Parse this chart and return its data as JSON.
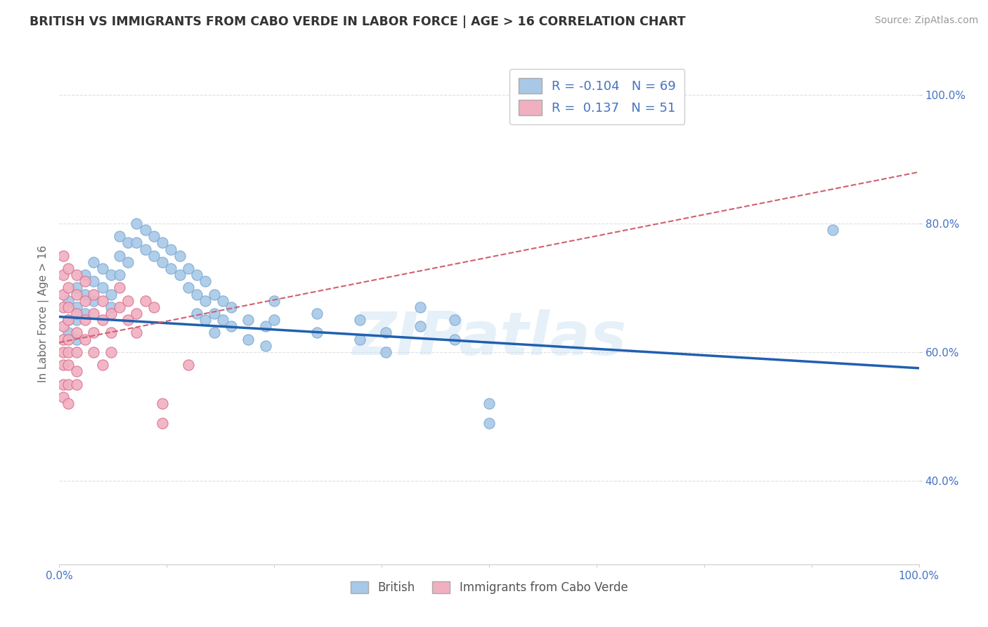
{
  "title": "BRITISH VS IMMIGRANTS FROM CABO VERDE IN LABOR FORCE | AGE > 16 CORRELATION CHART",
  "source": "Source: ZipAtlas.com",
  "ylabel": "In Labor Force | Age > 16",
  "xlim": [
    0.0,
    1.0
  ],
  "ylim": [
    0.27,
    1.05
  ],
  "ytick_positions": [
    0.4,
    0.6,
    0.8,
    1.0
  ],
  "ytick_labels": [
    "40.0%",
    "60.0%",
    "80.0%",
    "100.0%"
  ],
  "grid_color": "#e0e0e0",
  "background_color": "#ffffff",
  "watermark": "ZIPatlas",
  "british_color": "#a8c8e8",
  "cabo_verde_color": "#f0b0c0",
  "british_edge": "#7aaad0",
  "cabo_verde_edge": "#d87090",
  "trend_british_color": "#2060b0",
  "trend_cabo_color": "#d06070",
  "british_R": -0.104,
  "british_N": 69,
  "cabo_R": 0.137,
  "cabo_N": 51,
  "british_points": [
    [
      0.01,
      0.68
    ],
    [
      0.01,
      0.65
    ],
    [
      0.01,
      0.63
    ],
    [
      0.02,
      0.7
    ],
    [
      0.02,
      0.67
    ],
    [
      0.02,
      0.65
    ],
    [
      0.02,
      0.62
    ],
    [
      0.03,
      0.72
    ],
    [
      0.03,
      0.69
    ],
    [
      0.03,
      0.66
    ],
    [
      0.04,
      0.74
    ],
    [
      0.04,
      0.71
    ],
    [
      0.04,
      0.68
    ],
    [
      0.05,
      0.73
    ],
    [
      0.05,
      0.7
    ],
    [
      0.06,
      0.72
    ],
    [
      0.06,
      0.69
    ],
    [
      0.06,
      0.67
    ],
    [
      0.07,
      0.78
    ],
    [
      0.07,
      0.75
    ],
    [
      0.07,
      0.72
    ],
    [
      0.08,
      0.77
    ],
    [
      0.08,
      0.74
    ],
    [
      0.09,
      0.8
    ],
    [
      0.09,
      0.77
    ],
    [
      0.1,
      0.79
    ],
    [
      0.1,
      0.76
    ],
    [
      0.11,
      0.78
    ],
    [
      0.11,
      0.75
    ],
    [
      0.12,
      0.77
    ],
    [
      0.12,
      0.74
    ],
    [
      0.13,
      0.76
    ],
    [
      0.13,
      0.73
    ],
    [
      0.14,
      0.75
    ],
    [
      0.14,
      0.72
    ],
    [
      0.15,
      0.73
    ],
    [
      0.15,
      0.7
    ],
    [
      0.16,
      0.72
    ],
    [
      0.16,
      0.69
    ],
    [
      0.16,
      0.66
    ],
    [
      0.17,
      0.71
    ],
    [
      0.17,
      0.68
    ],
    [
      0.17,
      0.65
    ],
    [
      0.18,
      0.69
    ],
    [
      0.18,
      0.66
    ],
    [
      0.18,
      0.63
    ],
    [
      0.19,
      0.68
    ],
    [
      0.19,
      0.65
    ],
    [
      0.2,
      0.67
    ],
    [
      0.2,
      0.64
    ],
    [
      0.22,
      0.65
    ],
    [
      0.22,
      0.62
    ],
    [
      0.24,
      0.64
    ],
    [
      0.24,
      0.61
    ],
    [
      0.25,
      0.68
    ],
    [
      0.25,
      0.65
    ],
    [
      0.3,
      0.66
    ],
    [
      0.3,
      0.63
    ],
    [
      0.35,
      0.65
    ],
    [
      0.35,
      0.62
    ],
    [
      0.38,
      0.63
    ],
    [
      0.38,
      0.6
    ],
    [
      0.42,
      0.67
    ],
    [
      0.42,
      0.64
    ],
    [
      0.46,
      0.65
    ],
    [
      0.46,
      0.62
    ],
    [
      0.5,
      0.52
    ],
    [
      0.5,
      0.49
    ],
    [
      0.9,
      0.79
    ]
  ],
  "cabo_verde_points": [
    [
      0.005,
      0.75
    ],
    [
      0.005,
      0.72
    ],
    [
      0.005,
      0.69
    ],
    [
      0.005,
      0.67
    ],
    [
      0.005,
      0.64
    ],
    [
      0.005,
      0.62
    ],
    [
      0.005,
      0.6
    ],
    [
      0.005,
      0.58
    ],
    [
      0.005,
      0.55
    ],
    [
      0.005,
      0.53
    ],
    [
      0.01,
      0.73
    ],
    [
      0.01,
      0.7
    ],
    [
      0.01,
      0.67
    ],
    [
      0.01,
      0.65
    ],
    [
      0.01,
      0.62
    ],
    [
      0.01,
      0.6
    ],
    [
      0.01,
      0.58
    ],
    [
      0.01,
      0.55
    ],
    [
      0.01,
      0.52
    ],
    [
      0.02,
      0.72
    ],
    [
      0.02,
      0.69
    ],
    [
      0.02,
      0.66
    ],
    [
      0.02,
      0.63
    ],
    [
      0.02,
      0.6
    ],
    [
      0.02,
      0.57
    ],
    [
      0.02,
      0.55
    ],
    [
      0.03,
      0.71
    ],
    [
      0.03,
      0.68
    ],
    [
      0.03,
      0.65
    ],
    [
      0.03,
      0.62
    ],
    [
      0.04,
      0.69
    ],
    [
      0.04,
      0.66
    ],
    [
      0.04,
      0.63
    ],
    [
      0.04,
      0.6
    ],
    [
      0.05,
      0.68
    ],
    [
      0.05,
      0.65
    ],
    [
      0.05,
      0.58
    ],
    [
      0.06,
      0.66
    ],
    [
      0.06,
      0.63
    ],
    [
      0.06,
      0.6
    ],
    [
      0.07,
      0.7
    ],
    [
      0.07,
      0.67
    ],
    [
      0.08,
      0.68
    ],
    [
      0.08,
      0.65
    ],
    [
      0.09,
      0.66
    ],
    [
      0.09,
      0.63
    ],
    [
      0.1,
      0.68
    ],
    [
      0.11,
      0.67
    ],
    [
      0.12,
      0.52
    ],
    [
      0.12,
      0.49
    ],
    [
      0.15,
      0.58
    ]
  ]
}
